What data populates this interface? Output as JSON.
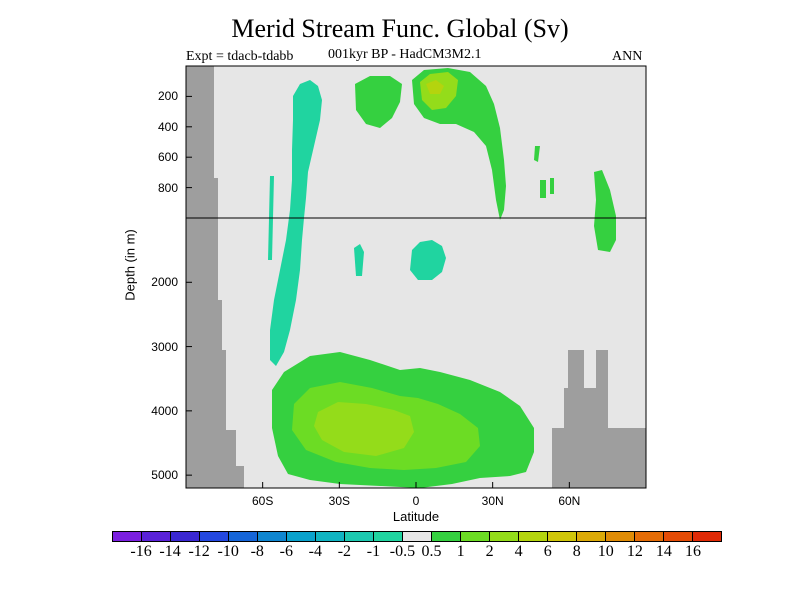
{
  "chart_data": {
    "type": "heatmap",
    "title": "Merid Stream Func. Global (Sv)",
    "expt_label": "Expt = tdacb-tdabb",
    "subtitle": "001kyr BP - HadCM3M2.1",
    "season": "ANN",
    "xlabel": "Latitude",
    "ylabel": "Depth (in m)",
    "xlim": [
      -90,
      90
    ],
    "ylim_depth_m": [
      5200,
      0
    ],
    "x_ticks": [
      {
        "value": -60,
        "label": "60S"
      },
      {
        "value": -30,
        "label": "30S"
      },
      {
        "value": 0,
        "label": "0"
      },
      {
        "value": 30,
        "label": "30N"
      },
      {
        "value": 60,
        "label": "60N"
      }
    ],
    "y_ticks": [
      {
        "value": 200,
        "label": "200"
      },
      {
        "value": 400,
        "label": "400"
      },
      {
        "value": 600,
        "label": "600"
      },
      {
        "value": 800,
        "label": "800"
      },
      {
        "value": 2000,
        "label": "2000"
      },
      {
        "value": 3000,
        "label": "3000"
      },
      {
        "value": 4000,
        "label": "4000"
      },
      {
        "value": 5000,
        "label": "5000"
      }
    ],
    "colorbar": {
      "labels": [
        "-16",
        "-14",
        "-12",
        "-10",
        "-8",
        "-6",
        "-4",
        "-2",
        "-1",
        "-0.5",
        "0.5",
        "1",
        "2",
        "4",
        "6",
        "8",
        "10",
        "12",
        "14",
        "16"
      ],
      "colors": [
        "#7b1fe0",
        "#5a22d8",
        "#3b28d2",
        "#2448e0",
        "#1565d8",
        "#0f86d0",
        "#0aa2cc",
        "#10b4c2",
        "#1cc9b0",
        "#20d4a0",
        "#e6e6e6",
        "#35d040",
        "#6cdc24",
        "#94dc1a",
        "#b4d40e",
        "#d0c60a",
        "#dcaa08",
        "#e08c06",
        "#e46c06",
        "#e44c06",
        "#e02a06"
      ]
    },
    "background_color": "#e6e6e6",
    "land_color": "#9e9e9e"
  }
}
